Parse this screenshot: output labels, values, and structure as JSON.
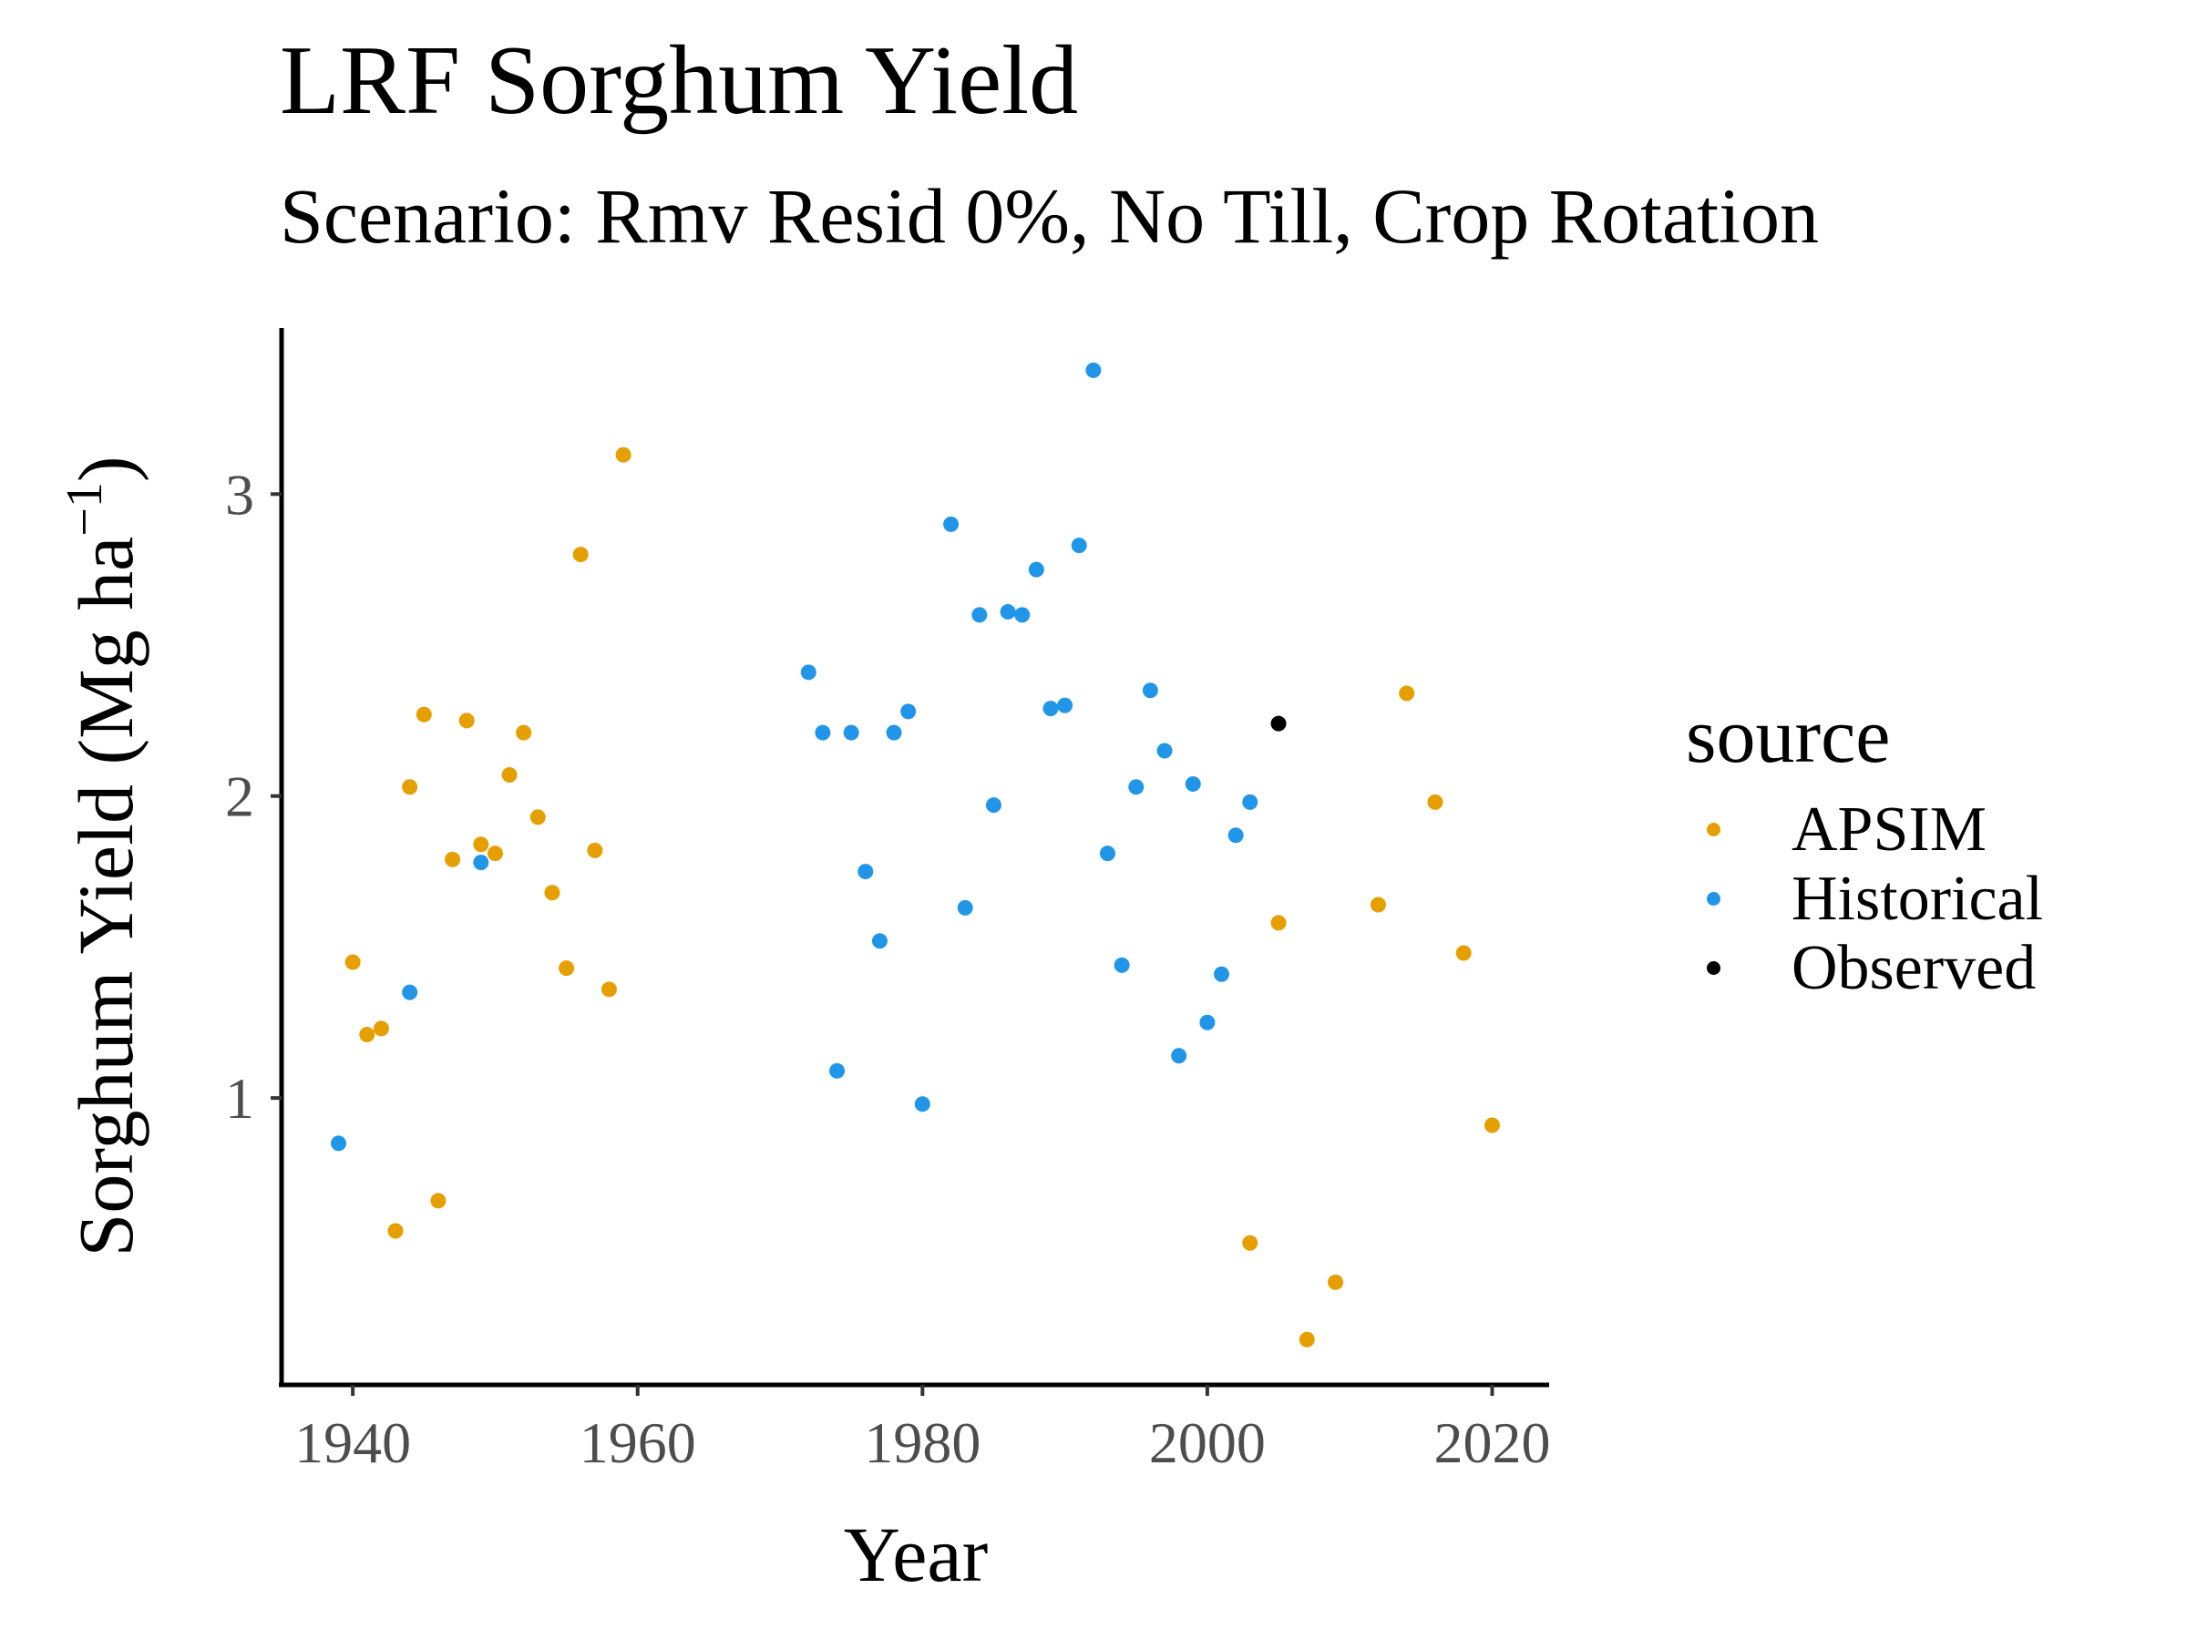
{
  "chart_data": {
    "type": "scatter",
    "title": "LRF Sorghum Yield",
    "subtitle": "Scenario: Rmv Resid 0%, No Till, Crop Rotation",
    "xlabel": "Year",
    "ylabel": "Sorghum Yield (Mg ha",
    "ylabel_superscript": "−1",
    "ylabel_close": ")",
    "xlim": [
      1935,
      2024
    ],
    "ylim": [
      0.05,
      3.55
    ],
    "xticks": [
      1940,
      1960,
      1980,
      2000,
      2020
    ],
    "yticks": [
      1,
      2,
      3
    ],
    "grid": false,
    "legend": {
      "title": "source",
      "position": "right"
    },
    "series": [
      {
        "name": "APSIM",
        "color": "#E69F00",
        "points": [
          [
            1940,
            1.45
          ],
          [
            1941,
            1.21
          ],
          [
            1942,
            1.23
          ],
          [
            1943,
            0.56
          ],
          [
            1944,
            2.03
          ],
          [
            1945,
            2.27
          ],
          [
            1946,
            0.66
          ],
          [
            1947,
            1.79
          ],
          [
            1948,
            2.25
          ],
          [
            1949,
            1.84
          ],
          [
            1950,
            1.81
          ],
          [
            1951,
            2.07
          ],
          [
            1952,
            2.21
          ],
          [
            1953,
            1.93
          ],
          [
            1954,
            1.68
          ],
          [
            1955,
            1.43
          ],
          [
            1956,
            2.8
          ],
          [
            1957,
            1.82
          ],
          [
            1958,
            1.36
          ],
          [
            1959,
            3.13
          ],
          [
            2003,
            0.52
          ],
          [
            2005,
            1.58
          ],
          [
            2007,
            0.2
          ],
          [
            2009,
            0.39
          ],
          [
            2012,
            1.64
          ],
          [
            2014,
            2.34
          ],
          [
            2016,
            1.98
          ],
          [
            2018,
            1.48
          ],
          [
            2020,
            0.91
          ]
        ]
      },
      {
        "name": "Historical",
        "color": "#2196E8",
        "points": [
          [
            1939,
            0.85
          ],
          [
            1944,
            1.35
          ],
          [
            1949,
            1.78
          ],
          [
            1972,
            2.41
          ],
          [
            1973,
            2.21
          ],
          [
            1974,
            1.09
          ],
          [
            1975,
            2.21
          ],
          [
            1976,
            1.75
          ],
          [
            1977,
            1.52
          ],
          [
            1978,
            2.21
          ],
          [
            1979,
            2.28
          ],
          [
            1980,
            0.98
          ],
          [
            1982,
            2.9
          ],
          [
            1983,
            1.63
          ],
          [
            1984,
            2.6
          ],
          [
            1985,
            1.97
          ],
          [
            1986,
            2.61
          ],
          [
            1987,
            2.6
          ],
          [
            1988,
            2.75
          ],
          [
            1989,
            2.29
          ],
          [
            1990,
            2.3
          ],
          [
            1991,
            2.83
          ],
          [
            1992,
            3.41
          ],
          [
            1993,
            1.81
          ],
          [
            1994,
            1.44
          ],
          [
            1995,
            2.03
          ],
          [
            1996,
            2.35
          ],
          [
            1997,
            2.15
          ],
          [
            1998,
            1.14
          ],
          [
            1999,
            2.04
          ],
          [
            2000,
            1.25
          ],
          [
            2001,
            1.41
          ],
          [
            2002,
            1.87
          ],
          [
            2003,
            1.98
          ]
        ]
      },
      {
        "name": "Observed",
        "color": "#000000",
        "points": [
          [
            2005,
            2.24
          ]
        ]
      }
    ]
  }
}
